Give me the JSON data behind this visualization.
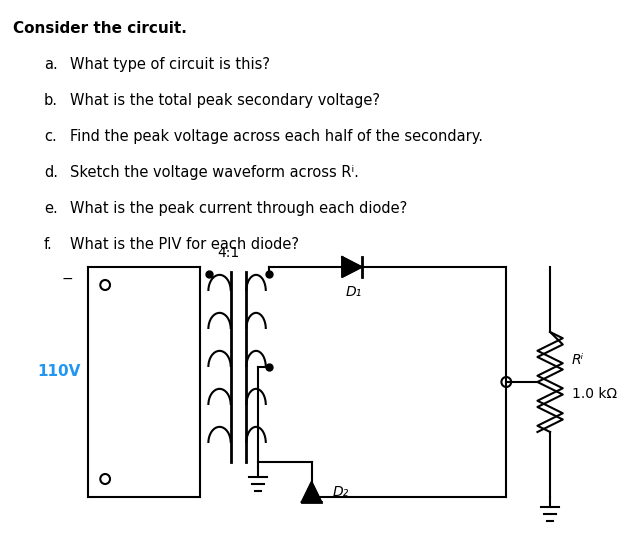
{
  "title": "Consider the circuit.",
  "questions": [
    [
      "a.",
      "What type of circuit is this?"
    ],
    [
      "b.",
      "What is the total peak secondary voltage?"
    ],
    [
      "c.",
      "Find the peak voltage across each half of the secondary."
    ],
    [
      "d.",
      "Sketch the voltage waveform across Rⁱ."
    ],
    [
      "e.",
      "What is the peak current through each diode?"
    ],
    [
      "f.",
      "What is the PIV for each diode?"
    ]
  ],
  "bg_color": "#ffffff",
  "text_color": "#000000",
  "blue_color": "#2196F3",
  "circuit": {
    "transformer_ratio": "4:1",
    "voltage": "110V",
    "D1_label": "D₁",
    "D2_label": "D₂",
    "RL_label": "Rⁱ",
    "RL_value": "1.0 kΩ"
  }
}
